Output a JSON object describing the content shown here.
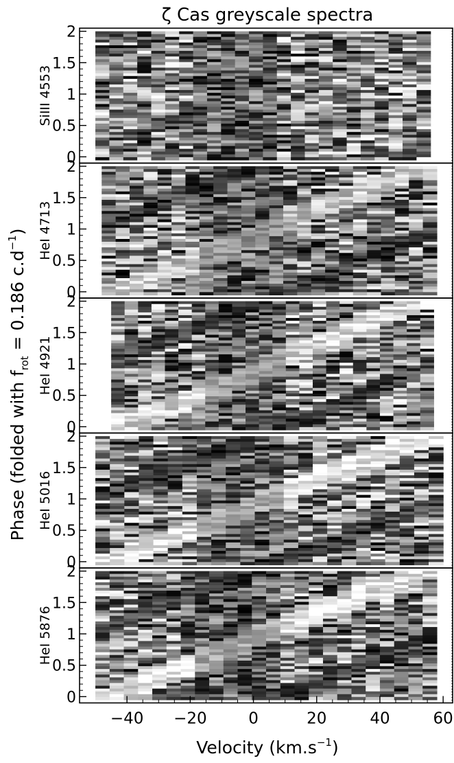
{
  "chart_data": {
    "type": "heatmap",
    "title": "ζ Cas greyscale spectra",
    "xlabel_main": "Velocity (km.s",
    "xlabel_sup": "−1",
    "xlabel_tail": ")",
    "ylabel_main": "Phase (folded with f",
    "ylabel_sub": "rot",
    "ylabel_tail": " = 0.186 c.d",
    "ylabel_sup": "−1",
    "ylabel_end": ")",
    "xlim": [
      -55,
      63
    ],
    "ylim": [
      -0.1,
      2.05
    ],
    "xticks": [
      {
        "value": -40,
        "label": "−40"
      },
      {
        "value": -20,
        "label": "−20"
      },
      {
        "value": 0,
        "label": "0"
      },
      {
        "value": 20,
        "label": "20"
      },
      {
        "value": 40,
        "label": "40"
      },
      {
        "value": 60,
        "label": "60"
      }
    ],
    "yticks": [
      {
        "value": 0,
        "label": "0"
      },
      {
        "value": 0.5,
        "label": "0.5"
      },
      {
        "value": 1,
        "label": "1"
      },
      {
        "value": 1.5,
        "label": "1.5"
      },
      {
        "value": 2,
        "label": "2"
      }
    ],
    "panels": [
      {
        "name": "SiIII 4553",
        "xrange": [
          -50,
          56
        ],
        "seed": 11,
        "streak": 0.0
      },
      {
        "name": "HeI 4713",
        "xrange": [
          -48,
          58
        ],
        "seed": 23,
        "streak": 0.55
      },
      {
        "name": "HeI 4921",
        "xrange": [
          -45,
          57
        ],
        "seed": 37,
        "streak": 0.65
      },
      {
        "name": "HeI 5016",
        "xrange": [
          -50,
          60
        ],
        "seed": 41,
        "streak": 0.75
      },
      {
        "name": "HeI 5876",
        "xrange": [
          -50,
          58
        ],
        "seed": 53,
        "streak": 0.7
      }
    ]
  }
}
